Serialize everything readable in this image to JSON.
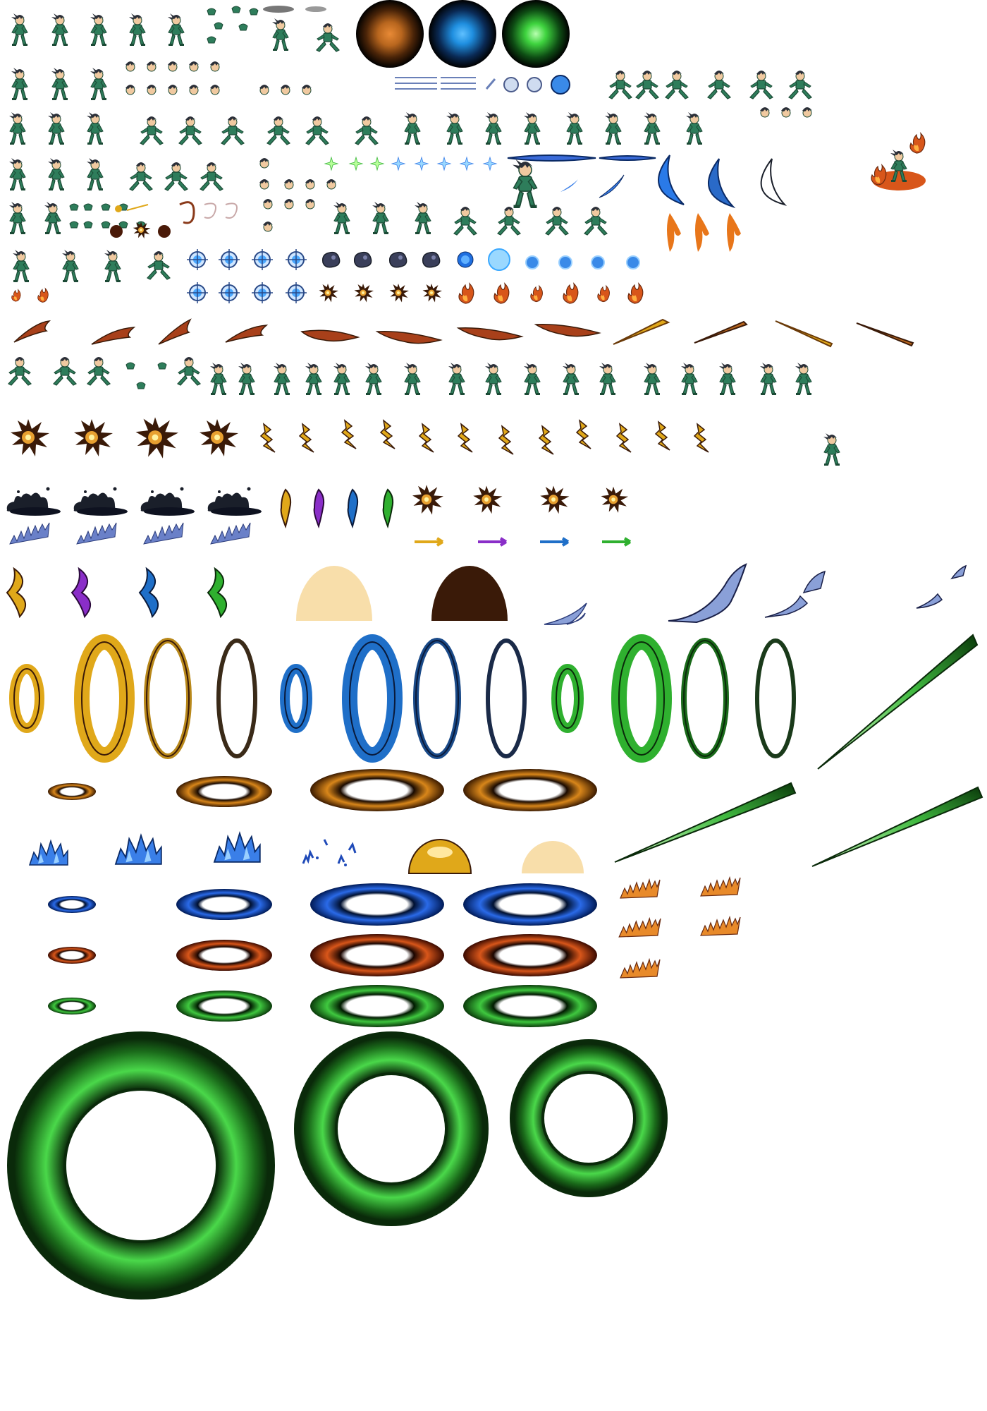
{
  "sheet": {
    "kind": "sprite-sheet",
    "background": "#ffffff",
    "colors": {
      "character_suit": "#2e7d5b",
      "character_suit_dark": "#1b4a35",
      "character_hair": "#2b2f38",
      "skin": "#f0c9a0",
      "orb_orange": "#b8661e",
      "orb_blue": "#1f8fe0",
      "orb_green": "#3fd43f",
      "gold": "#e0a81a",
      "purple": "#8a2ec8",
      "blue": "#1f6fc8",
      "green": "#2fb02f",
      "fire": "#d8561a",
      "ember_dark": "#6a2a10",
      "ink": "#1a1f2a",
      "ice": "#3a7fe8",
      "cream": "#f8deaa",
      "dark_brown": "#3a1a08"
    },
    "icon_groups": [
      "character-idle-frames",
      "character-run-frames",
      "character-attack-frames",
      "glow-orb-orange-icon",
      "glow-orb-blue-icon",
      "glow-orb-green-icon",
      "energy-streak-frames",
      "sparkle-frames",
      "crescent-slash-frames",
      "fire-effect-frames",
      "energy-ball-frames",
      "fire-streak-frames",
      "lance-projectile-frames",
      "explosion-frames",
      "lightning-frames",
      "ink-splash-frames",
      "feather-blade-frames",
      "arrow-projectile-frames",
      "wing-slash-frames",
      "dome-shield-frames",
      "smoke-wisp-frames",
      "portal-ring-frames",
      "green-beam-frames",
      "ground-ring-frames",
      "crystal-frames",
      "flame-burst-frames",
      "shockwave-ring-frames"
    ]
  }
}
